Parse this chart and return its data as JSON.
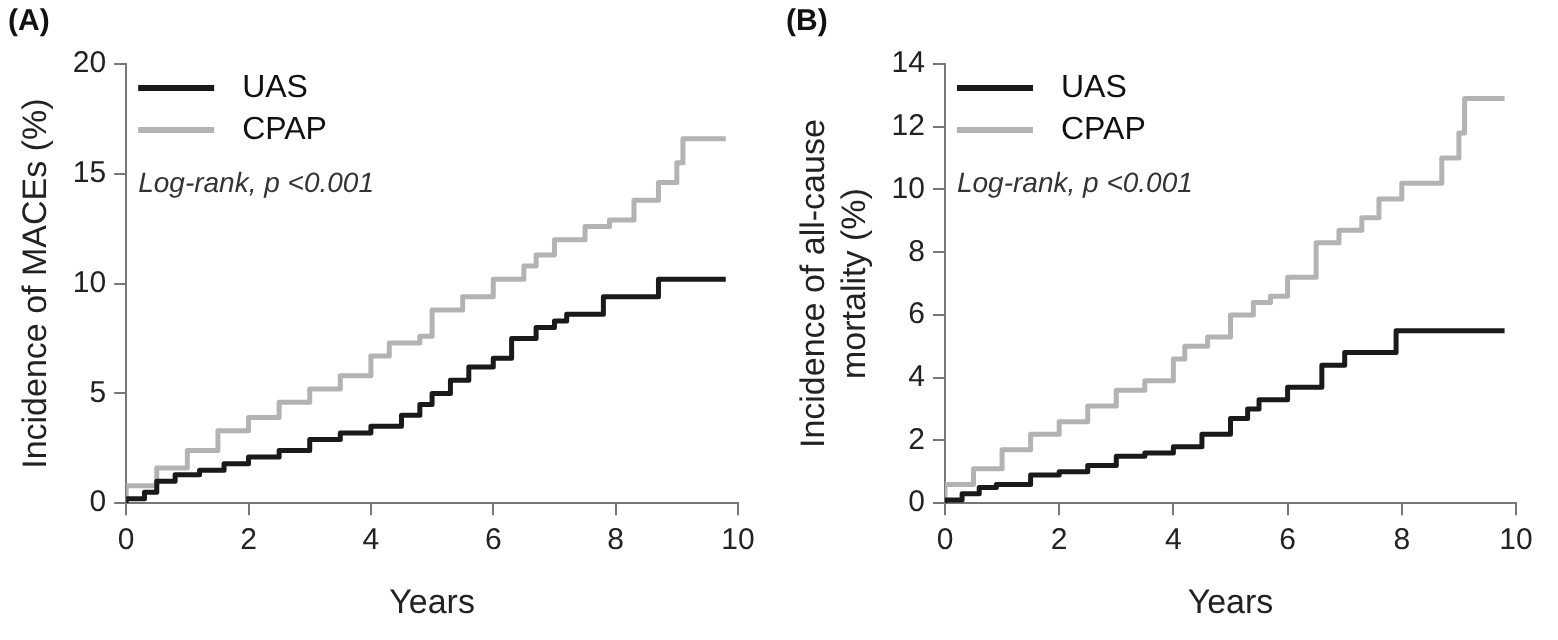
{
  "chart_data": [
    {
      "type": "step",
      "title": "(A)",
      "xlabel": "Years",
      "ylabel": "Incidence of MACEs (%)",
      "xlim": [
        0,
        10
      ],
      "xticks": [
        0,
        2,
        4,
        6,
        8,
        10
      ],
      "ylim": [
        0,
        20
      ],
      "yticks": [
        0,
        5,
        10,
        15,
        20
      ],
      "grid": false,
      "legend": "top left",
      "annotations": [
        "Log-rank, p <0.001"
      ],
      "series": [
        {
          "name": "UAS",
          "color": "#1a1a1a",
          "x": [
            0,
            0.3,
            0.5,
            0.8,
            1.2,
            1.6,
            2,
            2.5,
            3,
            3.5,
            4,
            4.5,
            4.8,
            5,
            5.3,
            5.6,
            6,
            6.3,
            6.7,
            7,
            7.2,
            7.8,
            8.7,
            8.9,
            9.8
          ],
          "values": [
            0,
            0.2,
            0.5,
            1.0,
            1.3,
            1.5,
            1.8,
            2.1,
            2.4,
            2.9,
            3.2,
            3.5,
            4.0,
            4.5,
            5.0,
            5.6,
            6.2,
            6.6,
            7.5,
            8.0,
            8.3,
            8.6,
            9.4,
            10.2,
            10.2
          ]
        },
        {
          "name": "CPAP",
          "color": "#b3b3b3",
          "x": [
            0,
            0.5,
            1,
            1.5,
            2,
            2.5,
            3,
            3.5,
            4,
            4.3,
            4.8,
            5,
            5.5,
            6,
            6.5,
            6.7,
            7,
            7.5,
            7.9,
            8.3,
            8.7,
            9,
            9.1,
            9.3,
            9.8
          ],
          "values": [
            0,
            0.8,
            1.6,
            2.4,
            3.3,
            3.9,
            4.6,
            5.2,
            5.8,
            6.7,
            7.3,
            7.6,
            8.8,
            9.4,
            10.2,
            10.8,
            11.3,
            12.0,
            12.6,
            12.9,
            13.8,
            14.6,
            15.5,
            16.6,
            16.6
          ]
        }
      ]
    },
    {
      "type": "step",
      "title": "(B)",
      "xlabel": "Years",
      "ylabel": "Incidence of all-cause mortality (%)",
      "xlim": [
        0,
        10
      ],
      "xticks": [
        0,
        2,
        4,
        6,
        8,
        10
      ],
      "ylim": [
        0,
        14
      ],
      "yticks": [
        0,
        2,
        4,
        6,
        8,
        10,
        12,
        14
      ],
      "grid": false,
      "legend": "top left",
      "annotations": [
        "Log-rank, p <0.001"
      ],
      "series": [
        {
          "name": "UAS",
          "color": "#1a1a1a",
          "x": [
            0,
            0.3,
            0.6,
            0.9,
            1.5,
            2,
            2.5,
            3,
            3.5,
            4,
            4.5,
            5,
            5.3,
            5.5,
            6,
            6.6,
            7,
            7.9,
            8.7,
            9.8
          ],
          "values": [
            0,
            0.1,
            0.3,
            0.5,
            0.6,
            0.9,
            1.0,
            1.2,
            1.5,
            1.6,
            1.8,
            2.2,
            2.7,
            3.0,
            3.3,
            3.7,
            4.4,
            4.8,
            5.5,
            5.5
          ]
        },
        {
          "name": "CPAP",
          "color": "#b3b3b3",
          "x": [
            0,
            0.5,
            1,
            1.5,
            2,
            2.5,
            3,
            3.5,
            4,
            4.2,
            4.6,
            5,
            5.4,
            5.7,
            6,
            6.5,
            6.9,
            7.3,
            7.6,
            8,
            8.7,
            9,
            9.1,
            9.3,
            9.8
          ],
          "values": [
            0,
            0.6,
            1.1,
            1.7,
            2.2,
            2.6,
            3.1,
            3.6,
            3.9,
            4.6,
            5.0,
            5.3,
            6.0,
            6.4,
            6.6,
            7.2,
            8.3,
            8.7,
            9.1,
            9.7,
            10.2,
            11.0,
            11.8,
            12.9,
            12.9
          ]
        }
      ]
    }
  ]
}
